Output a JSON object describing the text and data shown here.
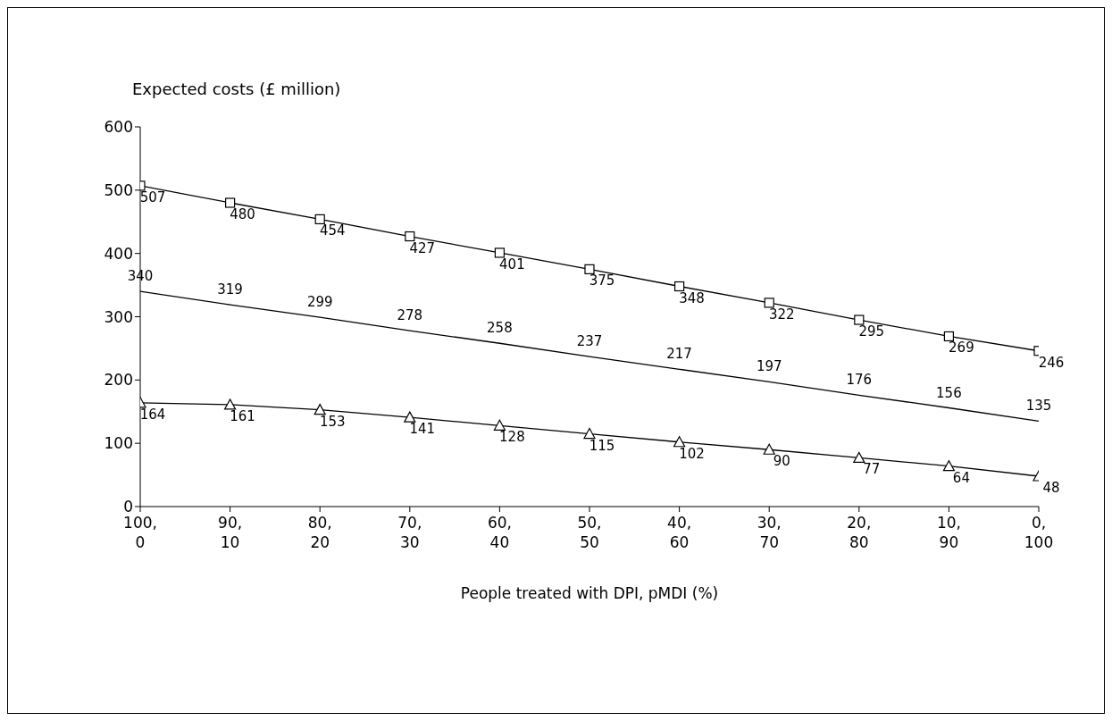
{
  "chart_data": {
    "type": "line",
    "ylabel": "Expected costs (£ million)",
    "xlabel": "People treated with DPI, pMDI (%)",
    "categories": [
      "100,\n0",
      "90,\n10",
      "80,\n20",
      "70,\n30",
      "60,\n40",
      "50,\n50",
      "40,\n60",
      "30,\n70",
      "20,\n80",
      "10,\n90",
      "0,\n100"
    ],
    "series": [
      {
        "color": "#000000",
        "marker": "square",
        "values": [
          507,
          480,
          454,
          427,
          401,
          375,
          348,
          322,
          295,
          269,
          246
        ]
      },
      {
        "color": "#000000",
        "marker": "none",
        "values": [
          340,
          319,
          299,
          278,
          258,
          237,
          217,
          197,
          176,
          156,
          135
        ]
      },
      {
        "color": "#000000",
        "marker": "triangle",
        "values": [
          164,
          161,
          153,
          141,
          128,
          115,
          102,
          90,
          77,
          64,
          48
        ]
      }
    ],
    "ylim": [
      0,
      600
    ],
    "yticks": [
      0,
      100,
      200,
      300,
      400,
      500,
      600
    ],
    "grid": false,
    "legend": false,
    "data_labels": true,
    "line_style": "solid"
  }
}
